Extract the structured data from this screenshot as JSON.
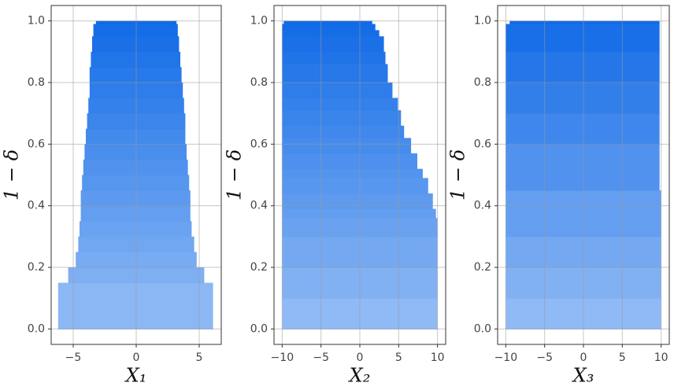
{
  "chart_data": [
    {
      "type": "bands",
      "xlabel": "X₁",
      "ylabel": "1 − δ",
      "xlim": [
        -6.75,
        6.75
      ],
      "ylim": [
        -0.05,
        1.05
      ],
      "xticks": [
        {
          "value": -5,
          "label": "−5"
        },
        0,
        5
      ],
      "yticks": [
        {
          "value": 0,
          "label": "0.0"
        },
        0.2,
        0.4,
        0.6,
        0.8,
        {
          "value": 1,
          "label": "1.0"
        }
      ],
      "grid": true,
      "color_bottom": "#9cc2f6",
      "color_top": "#0a66e6",
      "bands": [
        {
          "y": [
            0,
            0.15
          ],
          "x": [
            -6.2,
            6.1
          ]
        },
        {
          "y": [
            0.15,
            0.2
          ],
          "x": [
            -5.4,
            5.4
          ]
        },
        {
          "y": [
            0.2,
            0.25
          ],
          "x": [
            -4.8,
            4.8
          ]
        },
        {
          "y": [
            0.25,
            0.3
          ],
          "x": [
            -4.6,
            4.6
          ]
        },
        {
          "y": [
            0.3,
            0.35
          ],
          "x": [
            -4.5,
            4.4
          ]
        },
        {
          "y": [
            0.35,
            0.4
          ],
          "x": [
            -4.4,
            4.3
          ]
        },
        {
          "y": [
            0.4,
            0.45
          ],
          "x": [
            -4.4,
            4.3
          ]
        },
        {
          "y": [
            0.45,
            0.5
          ],
          "x": [
            -4.3,
            4.2
          ]
        },
        {
          "y": [
            0.5,
            0.55
          ],
          "x": [
            -4.2,
            4.1
          ]
        },
        {
          "y": [
            0.55,
            0.6
          ],
          "x": [
            -4.1,
            4.0
          ]
        },
        {
          "y": [
            0.6,
            0.65
          ],
          "x": [
            -4.0,
            3.9
          ]
        },
        {
          "y": [
            0.65,
            0.7
          ],
          "x": [
            -3.9,
            3.9
          ]
        },
        {
          "y": [
            0.7,
            0.75
          ],
          "x": [
            -3.8,
            3.8
          ]
        },
        {
          "y": [
            0.75,
            0.8
          ],
          "x": [
            -3.7,
            3.7
          ]
        },
        {
          "y": [
            0.8,
            0.85
          ],
          "x": [
            -3.7,
            3.6
          ]
        },
        {
          "y": [
            0.85,
            0.9
          ],
          "x": [
            -3.6,
            3.5
          ]
        },
        {
          "y": [
            0.9,
            0.95
          ],
          "x": [
            -3.5,
            3.4
          ]
        },
        {
          "y": [
            0.95,
            0.99
          ],
          "x": [
            -3.4,
            3.3
          ]
        },
        {
          "y": [
            0.99,
            1.0
          ],
          "x": [
            -3.2,
            3.2
          ]
        }
      ]
    },
    {
      "type": "bands",
      "xlabel": "X₂",
      "ylabel": "1 − δ",
      "xlim": [
        -11.05,
        11.05
      ],
      "ylim": [
        -0.05,
        1.05
      ],
      "xticks": [
        {
          "value": -10,
          "label": "−10"
        },
        {
          "value": -5,
          "label": "−5"
        },
        0,
        5,
        10
      ],
      "yticks": [
        {
          "value": 0,
          "label": "0.0"
        },
        0.2,
        0.4,
        0.6,
        0.8,
        {
          "value": 1,
          "label": "1.0"
        }
      ],
      "grid": true,
      "color_bottom": "#9cc2f6",
      "color_top": "#0a66e6",
      "bands": [
        {
          "y": [
            0,
            0.1
          ],
          "x": [
            -10,
            10
          ]
        },
        {
          "y": [
            0.1,
            0.2
          ],
          "x": [
            -10,
            10
          ]
        },
        {
          "y": [
            0.2,
            0.3
          ],
          "x": [
            -10,
            10
          ]
        },
        {
          "y": [
            0.3,
            0.36
          ],
          "x": [
            -10,
            10
          ]
        },
        {
          "y": [
            0.36,
            0.39
          ],
          "x": [
            -10,
            9.8
          ]
        },
        {
          "y": [
            0.39,
            0.44
          ],
          "x": [
            -10,
            9.4
          ]
        },
        {
          "y": [
            0.44,
            0.49
          ],
          "x": [
            -10,
            8.8
          ]
        },
        {
          "y": [
            0.49,
            0.52
          ],
          "x": [
            -10,
            8.1
          ]
        },
        {
          "y": [
            0.52,
            0.57
          ],
          "x": [
            -10,
            7.4
          ]
        },
        {
          "y": [
            0.57,
            0.62
          ],
          "x": [
            -10,
            6.6
          ]
        },
        {
          "y": [
            0.62,
            0.66
          ],
          "x": [
            -10,
            5.7
          ]
        },
        {
          "y": [
            0.66,
            0.71
          ],
          "x": [
            -10,
            5.3
          ]
        },
        {
          "y": [
            0.71,
            0.75
          ],
          "x": [
            -10,
            4.9
          ]
        },
        {
          "y": [
            0.75,
            0.8
          ],
          "x": [
            -10,
            4.2
          ]
        },
        {
          "y": [
            0.8,
            0.86
          ],
          "x": [
            -10,
            3.6
          ]
        },
        {
          "y": [
            0.86,
            0.9
          ],
          "x": [
            -10,
            3.3
          ]
        },
        {
          "y": [
            0.9,
            0.95
          ],
          "x": [
            -10,
            3.1
          ]
        },
        {
          "y": [
            0.95,
            0.97
          ],
          "x": [
            -10,
            2.5
          ]
        },
        {
          "y": [
            0.97,
            0.99
          ],
          "x": [
            -10,
            2.0
          ]
        },
        {
          "y": [
            0.99,
            1.0
          ],
          "x": [
            -9.8,
            1.6
          ]
        }
      ]
    },
    {
      "type": "bands",
      "xlabel": "X₃",
      "ylabel": "1 − δ",
      "xlim": [
        -11.05,
        11.05
      ],
      "ylim": [
        -0.05,
        1.05
      ],
      "xticks": [
        {
          "value": -10,
          "label": "−10"
        },
        {
          "value": -5,
          "label": "−5"
        },
        0,
        5,
        10
      ],
      "yticks": [
        {
          "value": 0,
          "label": "0.0"
        },
        0.2,
        0.4,
        0.6,
        0.8,
        {
          "value": 1,
          "label": "1.0"
        }
      ],
      "grid": true,
      "color_bottom": "#9cc2f6",
      "color_top": "#0a66e6",
      "bands": [
        {
          "y": [
            0,
            0.1
          ],
          "x": [
            -10,
            10
          ]
        },
        {
          "y": [
            0.1,
            0.2
          ],
          "x": [
            -10,
            10
          ]
        },
        {
          "y": [
            0.2,
            0.3
          ],
          "x": [
            -10,
            10
          ]
        },
        {
          "y": [
            0.3,
            0.45
          ],
          "x": [
            -10,
            10
          ]
        },
        {
          "y": [
            0.45,
            0.6
          ],
          "x": [
            -10,
            9.8
          ]
        },
        {
          "y": [
            0.6,
            0.7
          ],
          "x": [
            -10,
            9.8
          ]
        },
        {
          "y": [
            0.7,
            0.8
          ],
          "x": [
            -10,
            9.8
          ]
        },
        {
          "y": [
            0.8,
            0.9
          ],
          "x": [
            -10,
            9.8
          ]
        },
        {
          "y": [
            0.9,
            0.99
          ],
          "x": [
            -10,
            9.8
          ]
        },
        {
          "y": [
            0.99,
            1.0
          ],
          "x": [
            -9.5,
            9.8
          ]
        }
      ]
    }
  ]
}
